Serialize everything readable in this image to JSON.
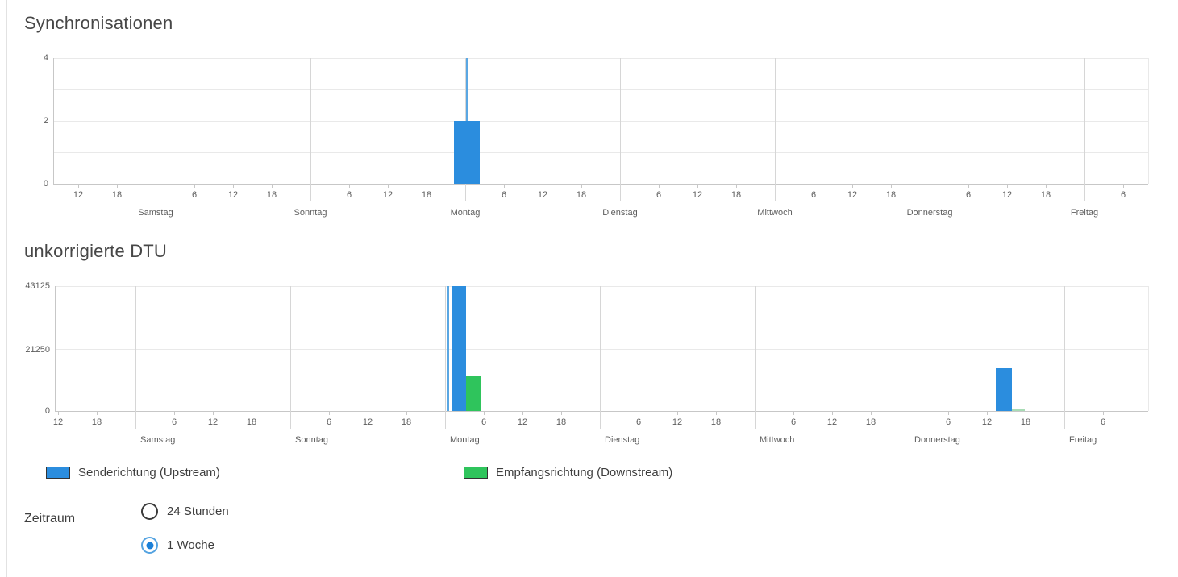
{
  "colors": {
    "upstream": "#2b8dde",
    "downstream": "#2fc45c",
    "upstream_light": "#5aa7e3",
    "downstream_light": "#a8dcb5"
  },
  "chart_data": [
    {
      "id": "sync",
      "type": "bar",
      "title": "Synchronisationen",
      "xlabel": "",
      "ylabel": "",
      "ymax": 4,
      "ylim": [
        0,
        4
      ],
      "grid": true,
      "yticks": [
        {
          "value": 4,
          "label": "4"
        },
        {
          "value": 2,
          "label": "2"
        },
        {
          "value": 0,
          "label": "0"
        }
      ],
      "days": [
        "Samstag",
        "Sonntag",
        "Montag",
        "Dienstag",
        "Mittwoch",
        "Donnerstag",
        "Freitag"
      ],
      "hour_labels": [
        "12",
        "18",
        "6",
        "12",
        "18",
        "6",
        "12",
        "18",
        "6",
        "12",
        "18",
        "6",
        "12",
        "18",
        "6",
        "12",
        "18",
        "6",
        "12",
        "18",
        "6"
      ],
      "bars": [
        {
          "series": "upstream",
          "day": "Montag",
          "start_h": 0.125,
          "end_h": 0.375,
          "value": 4
        },
        {
          "series": "upstream",
          "day": "Montag",
          "start_h": -1.75,
          "end_h": 2.25,
          "value": 2
        }
      ]
    },
    {
      "id": "dtu",
      "type": "bar",
      "title": "unkorrigierte DTU",
      "xlabel": "",
      "ylabel": "",
      "ymax": 43125,
      "ylim": [
        0,
        43125
      ],
      "grid": true,
      "yticks": [
        {
          "value": 43125,
          "label": "43125"
        },
        {
          "value": 21250,
          "label": "21250"
        },
        {
          "value": 0,
          "label": "0"
        }
      ],
      "days": [
        "Samstag",
        "Sonntag",
        "Montag",
        "Dienstag",
        "Mittwoch",
        "Donnerstag",
        "Freitag"
      ],
      "hour_labels": [
        "12",
        "18",
        "6",
        "12",
        "18",
        "6",
        "12",
        "18",
        "6",
        "12",
        "18",
        "6",
        "12",
        "18",
        "6",
        "12",
        "18",
        "6",
        "12",
        "18",
        "6"
      ],
      "bars": [
        {
          "series": "upstream",
          "day": "Montag",
          "start_h": 0.25,
          "end_h": 0.625,
          "value": 43125
        },
        {
          "series": "upstream",
          "day": "Montag",
          "start_h": 1.125,
          "end_h": 3.25,
          "value": 43125
        },
        {
          "series": "downstream",
          "day": "Montag",
          "start_h": 3.25,
          "end_h": 5.5,
          "value": 11950
        },
        {
          "series": "upstream",
          "day": "Donnerstag",
          "start_h": 13.375,
          "end_h": 15.875,
          "value": 14700
        },
        {
          "series": "downstream",
          "day": "Donnerstag",
          "start_h": 15.875,
          "end_h": 17.875,
          "value": 550
        }
      ]
    }
  ],
  "legend": [
    {
      "series": "upstream",
      "label": "Senderichtung (Upstream)"
    },
    {
      "series": "downstream",
      "label": "Empfangsrichtung (Downstream)"
    }
  ],
  "zeitraum": {
    "label": "Zeitraum",
    "options": [
      {
        "label": "24 Stunden",
        "selected": false
      },
      {
        "label": "1 Woche",
        "selected": true
      }
    ]
  }
}
